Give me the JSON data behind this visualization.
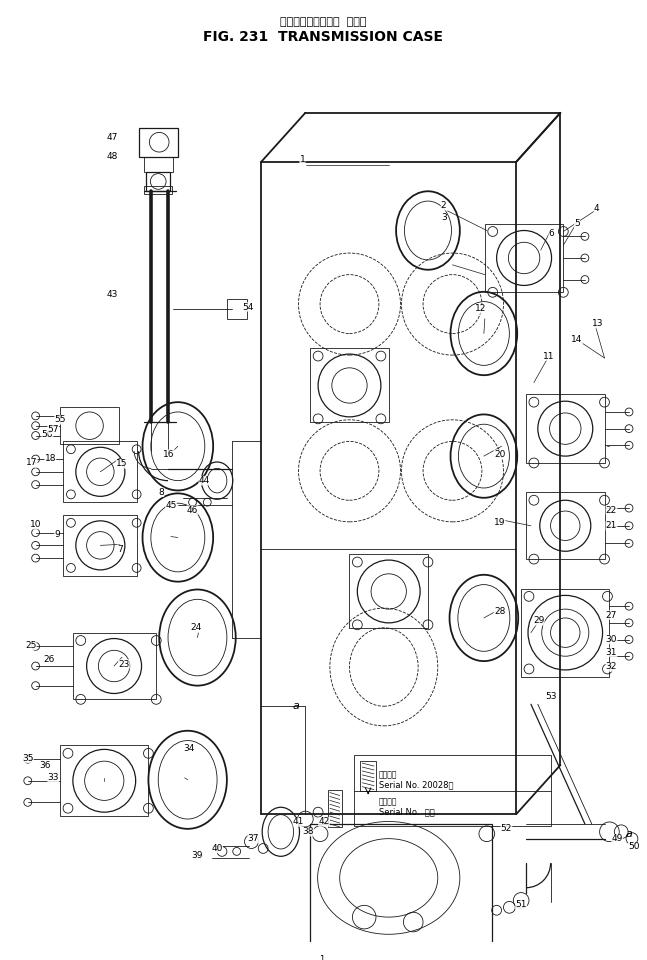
{
  "title_jp": "トランスミッション  ケース",
  "title_en": "FIG. 231  TRANSMISSION CASE",
  "bg_color": "#ffffff",
  "line_color": "#000000",
  "fig_width": 6.47,
  "fig_height": 9.6,
  "dpi": 100,
  "serial_note1_jp": "適用号機",
  "serial_note1_en": "Serial No. 20028～",
  "serial_note2_jp": "適用号機",
  "serial_note2_en": "Serial No.  ．～"
}
